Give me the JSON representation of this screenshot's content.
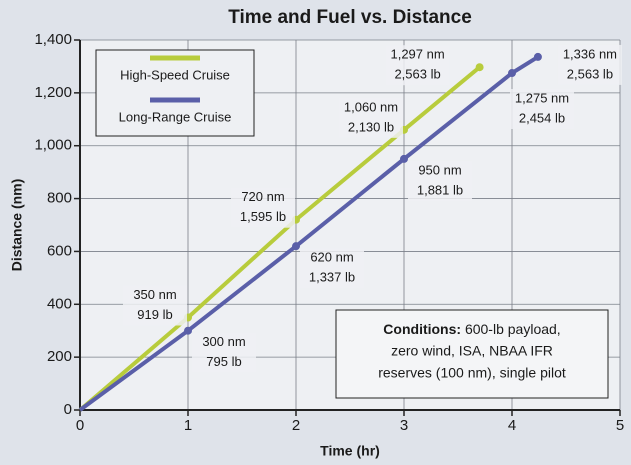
{
  "chart_data": {
    "type": "line",
    "title": "Time and Fuel vs. Distance",
    "xlabel": "Time (hr)",
    "ylabel": "Distance (nm)",
    "xlim": [
      0,
      5
    ],
    "xticks": [
      0,
      1,
      2,
      3,
      4,
      5
    ],
    "ylim": [
      0,
      1400
    ],
    "yticks": [
      0,
      200,
      400,
      600,
      800,
      {
        "value": 1000,
        "label": "1,000"
      },
      {
        "value": 1200,
        "label": "1,200"
      },
      {
        "value": 1400,
        "label": "1,400"
      }
    ],
    "grid": true,
    "legend": "upper left",
    "series": [
      {
        "name": "High-Speed Cruise",
        "color": "#b8cc3c",
        "x": [
          0,
          1,
          2,
          3,
          3.7
        ],
        "values": [
          0,
          350,
          720,
          1060,
          1297
        ],
        "value_labels": [
          null,
          "350 nm",
          "720 nm",
          "1,060 nm",
          "1,297 nm"
        ],
        "fuel_labels": [
          null,
          "919 lb",
          "1,595 lb",
          "2,130 lb",
          "2,563 lb"
        ]
      },
      {
        "name": "Long-Range Cruise",
        "color": "#5a5fa8",
        "x": [
          0,
          1,
          2,
          3,
          4,
          4.24
        ],
        "values": [
          0,
          300,
          620,
          950,
          1275,
          1336
        ],
        "value_labels": [
          null,
          "300 nm",
          "620 nm",
          "950 nm",
          "1,275 nm",
          "1,336 nm"
        ],
        "fuel_labels": [
          null,
          "795 lb",
          "1,337 lb",
          "1,881 lb",
          "2,454 lb",
          "2,563 lb"
        ]
      }
    ],
    "annotation": {
      "heading": "Conditions:",
      "lines": [
        " 600-lb payload,",
        "zero wind, ISA, NBAA IFR",
        "reserves (100 nm), single pilot"
      ]
    }
  }
}
